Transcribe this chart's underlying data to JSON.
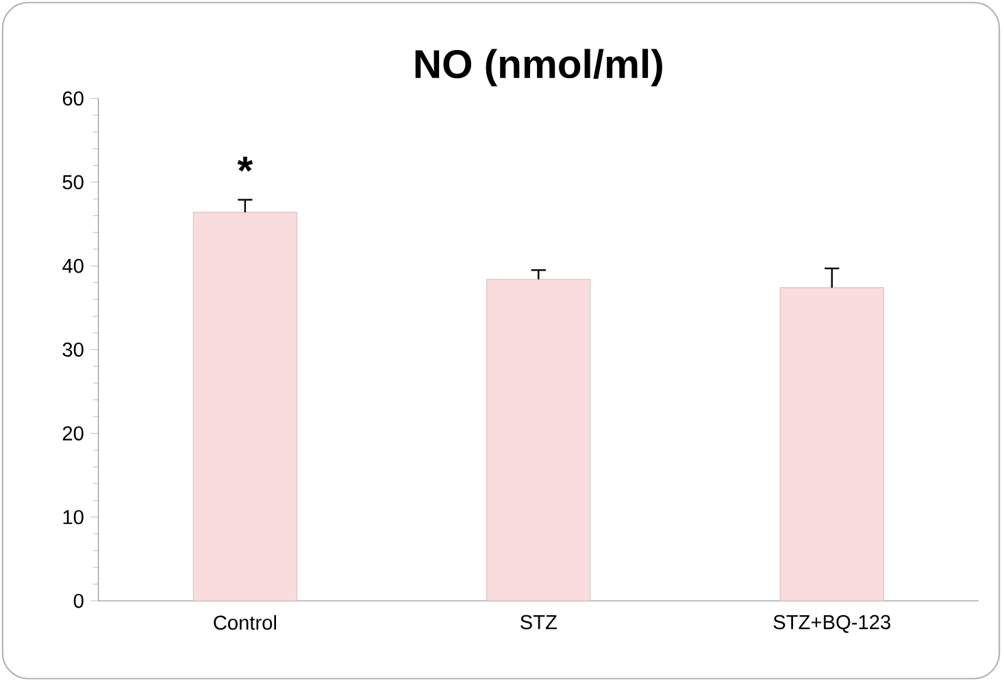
{
  "chart_data": {
    "type": "bar",
    "title": "NO (nmol/ml)",
    "categories": [
      "Control",
      "STZ",
      "STZ+BQ-123"
    ],
    "values": [
      46.4,
      38.4,
      37.4
    ],
    "errors": [
      [
        46.4,
        47.9
      ],
      [
        38.4,
        39.5
      ],
      [
        37.4,
        39.7
      ]
    ],
    "color": "#fadcdc",
    "ylim": [
      0,
      60
    ],
    "yticks": [
      0,
      10,
      20,
      30,
      40,
      50,
      60
    ],
    "annotations": [
      "*"
    ]
  }
}
